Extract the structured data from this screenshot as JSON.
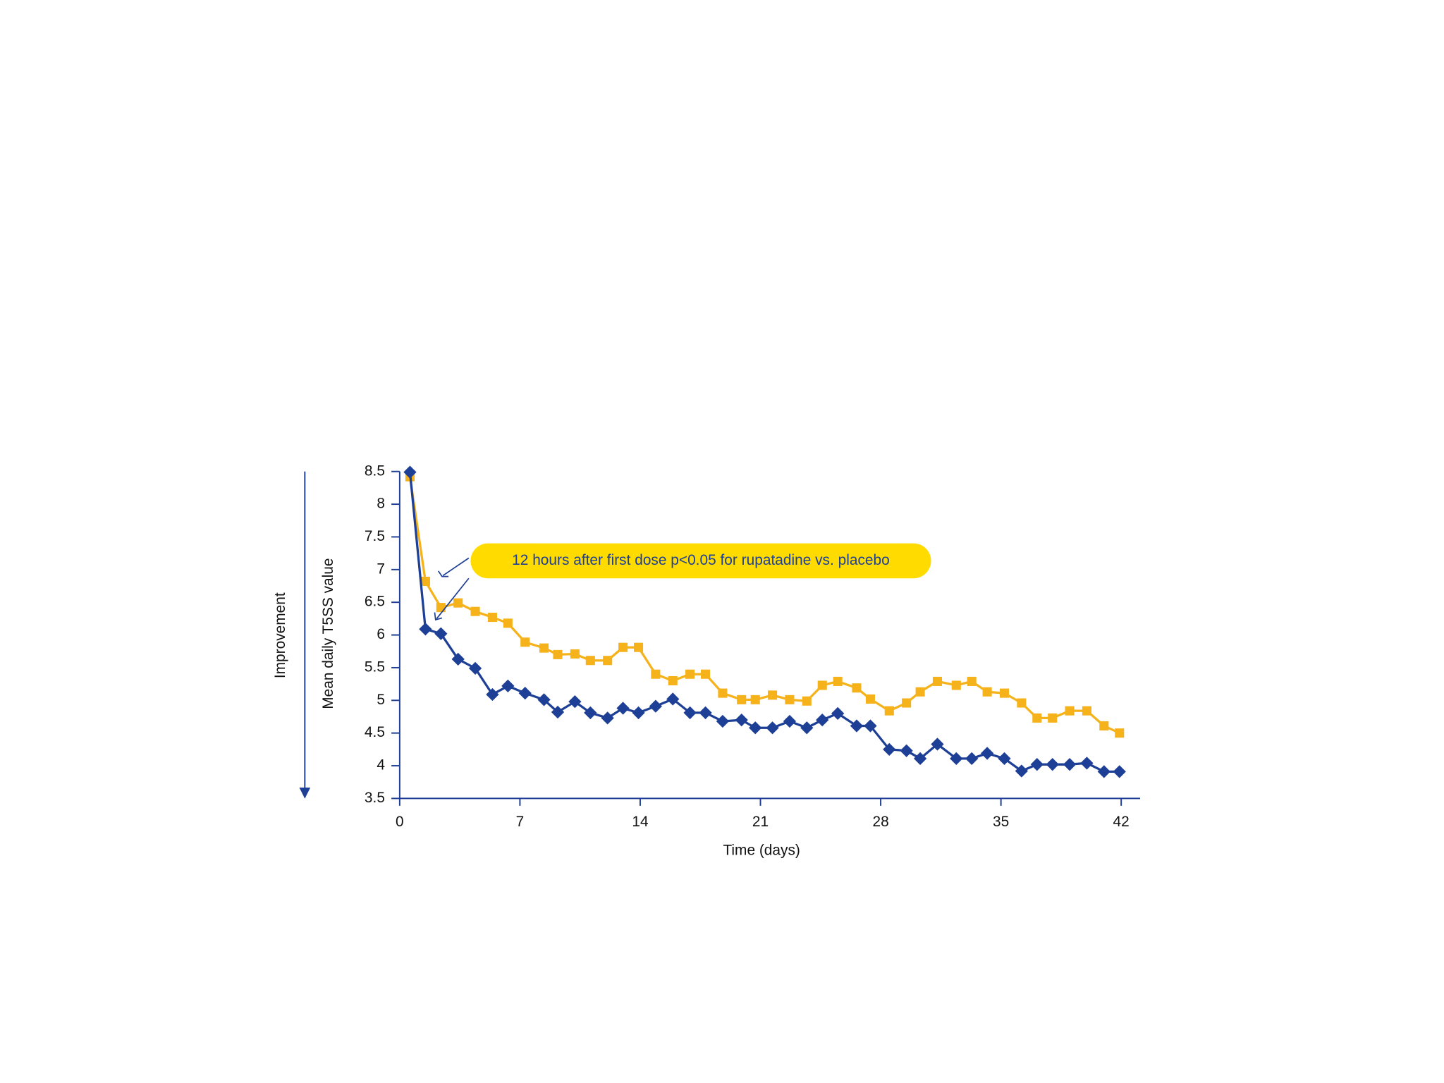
{
  "chart_data": {
    "type": "line",
    "y_label": "Mean daily T5SS value",
    "direction_label": "Improvement",
    "x_label": "Time (days)",
    "annotation": "12 hours after first dose p<0.05 for rupatadine vs. placebo",
    "x": [
      0.6,
      1.5,
      2.4,
      3.4,
      4.4,
      5.4,
      6.3,
      7.3,
      8.4,
      9.2,
      10.2,
      11.1,
      12.1,
      13.0,
      13.9,
      14.9,
      15.9,
      16.9,
      17.8,
      18.8,
      19.9,
      20.7,
      21.7,
      22.7,
      23.7,
      24.6,
      25.5,
      26.6,
      27.4,
      28.5,
      29.5,
      30.3,
      31.3,
      32.4,
      33.3,
      34.2,
      35.2,
      36.2,
      37.1,
      38.0,
      39.0,
      40.0,
      41.0,
      41.9
    ],
    "series": [
      {
        "color": "#f5b21a",
        "marker": "square",
        "values": [
          8.42,
          6.82,
          6.42,
          6.49,
          6.36,
          6.27,
          6.18,
          5.89,
          5.8,
          5.7,
          5.71,
          5.61,
          5.61,
          5.81,
          5.81,
          5.4,
          5.3,
          5.4,
          5.4,
          5.11,
          5.01,
          5.01,
          5.08,
          5.01,
          4.99,
          5.23,
          5.29,
          5.19,
          5.02,
          4.84,
          4.96,
          5.13,
          5.29,
          5.23,
          5.29,
          5.13,
          5.11,
          4.96,
          4.73,
          4.73,
          4.84,
          4.84,
          4.61,
          4.5
        ]
      },
      {
        "color": "#1e3f96",
        "marker": "diamond",
        "values": [
          8.49,
          6.09,
          6.02,
          5.63,
          5.49,
          5.09,
          5.22,
          5.11,
          5.01,
          4.82,
          4.98,
          4.81,
          4.73,
          4.88,
          4.81,
          4.91,
          5.02,
          4.81,
          4.81,
          4.68,
          4.7,
          4.58,
          4.58,
          4.68,
          4.58,
          4.7,
          4.8,
          4.61,
          4.61,
          4.25,
          4.23,
          4.11,
          4.33,
          4.11,
          4.11,
          4.19,
          4.11,
          3.92,
          4.02,
          4.02,
          4.02,
          4.04,
          3.91,
          3.91
        ]
      }
    ],
    "xlim": [
      0,
      43.1
    ],
    "xticks": [
      0,
      7,
      14,
      21,
      28,
      35,
      42
    ],
    "ylim": [
      3.5,
      8.5
    ],
    "yticks": [
      3.5,
      4,
      4.5,
      5,
      5.5,
      6,
      6.5,
      7,
      7.5,
      8,
      8.5
    ]
  }
}
